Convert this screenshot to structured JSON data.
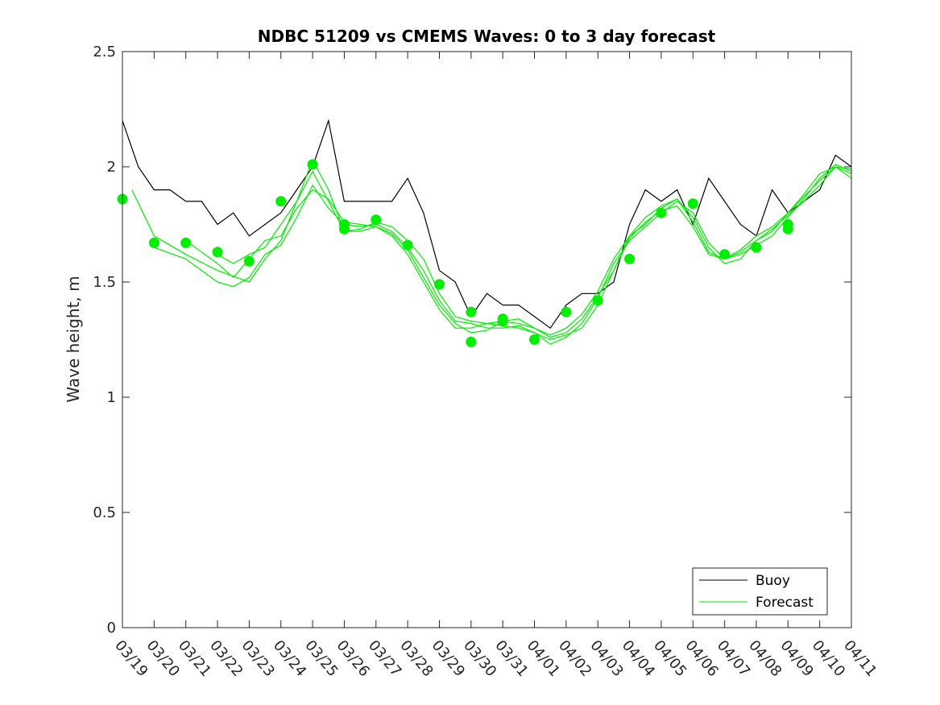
{
  "chart_data": {
    "type": "line",
    "title": "NDBC 51209 vs CMEMS Waves: 0 to 3 day forecast",
    "ylabel": "Wave height, m",
    "xlabel": "",
    "ylim": [
      0,
      2.5
    ],
    "yticks": [
      0,
      0.5,
      1,
      1.5,
      2,
      2.5
    ],
    "ytick_labels": [
      "0",
      "0.5",
      "1",
      "1.5",
      "2",
      "2.5"
    ],
    "xlim": [
      0,
      23
    ],
    "xtick_labels": [
      "03/19",
      "03/20",
      "03/21",
      "03/22",
      "03/23",
      "03/24",
      "03/25",
      "03/26",
      "03/27",
      "03/28",
      "03/29",
      "03/30",
      "03/31",
      "04/01",
      "04/02",
      "04/03",
      "04/04",
      "04/05",
      "04/06",
      "04/07",
      "04/08",
      "04/09",
      "04/10",
      "04/11"
    ],
    "x_unit_note": "x values are days since 03/19 00:00",
    "legend": {
      "location": "bottom-right",
      "entries": [
        "Buoy",
        "Forecast"
      ]
    },
    "colors": {
      "buoy": "#000000",
      "forecast": "#00ee00"
    },
    "series": [
      {
        "name": "Buoy",
        "x": [
          0,
          0.5,
          1,
          1.5,
          2,
          2.5,
          3,
          3.5,
          4,
          4.5,
          5,
          5.5,
          6,
          6.5,
          7,
          7.5,
          8,
          8.5,
          9,
          9.5,
          10,
          10.5,
          11,
          11.5,
          12,
          12.5,
          13,
          13.5,
          14,
          14.5,
          15,
          15.5,
          16,
          16.5,
          17,
          17.5,
          18,
          18.5,
          19,
          19.5,
          20,
          20.5,
          21,
          21.5,
          22,
          22.5,
          23
        ],
        "values": [
          2.2,
          2.0,
          1.9,
          1.9,
          1.85,
          1.85,
          1.75,
          1.8,
          1.7,
          1.75,
          1.8,
          1.9,
          2.0,
          2.2,
          1.85,
          1.85,
          1.85,
          1.85,
          1.95,
          1.8,
          1.55,
          1.5,
          1.35,
          1.45,
          1.4,
          1.4,
          1.35,
          1.3,
          1.4,
          1.45,
          1.45,
          1.5,
          1.75,
          1.9,
          1.85,
          1.9,
          1.75,
          1.95,
          1.85,
          1.75,
          1.7,
          1.9,
          1.8,
          1.85,
          1.9,
          2.05,
          2.0
        ]
      },
      {
        "name": "Forecast",
        "role": "analysis-points",
        "x": [
          0,
          1,
          2,
          3,
          4,
          5,
          6,
          7,
          7,
          8,
          9,
          10,
          11,
          11,
          12,
          12,
          13,
          14,
          15,
          16,
          17,
          18,
          19,
          20,
          21,
          21
        ],
        "values": [
          1.86,
          1.67,
          1.67,
          1.63,
          1.59,
          1.85,
          2.01,
          1.75,
          1.73,
          1.77,
          1.66,
          1.49,
          1.37,
          1.24,
          1.34,
          1.33,
          1.25,
          1.37,
          1.42,
          1.6,
          1.8,
          1.84,
          1.62,
          1.65,
          1.75,
          1.73
        ]
      },
      {
        "name": "Forecast",
        "role": "forecast-run-1",
        "x": [
          0.3,
          1,
          2,
          3,
          4,
          4.5,
          5,
          5.5,
          6,
          6.5,
          7,
          7.5,
          8,
          8.5,
          9,
          9.5,
          10,
          10.5,
          11,
          11.5,
          12,
          12.5,
          13,
          13.5,
          14,
          14.5,
          15,
          15.5,
          16,
          16.5,
          17,
          17.5,
          18,
          18.5,
          19,
          19.5,
          20,
          20.5,
          21,
          21.5,
          22,
          22.5,
          23
        ],
        "values": [
          1.9,
          1.7,
          1.62,
          1.55,
          1.5,
          1.6,
          1.68,
          1.85,
          1.98,
          1.85,
          1.72,
          1.73,
          1.76,
          1.74,
          1.68,
          1.6,
          1.45,
          1.35,
          1.33,
          1.32,
          1.31,
          1.3,
          1.28,
          1.25,
          1.27,
          1.3,
          1.4,
          1.55,
          1.7,
          1.75,
          1.82,
          1.86,
          1.78,
          1.65,
          1.58,
          1.6,
          1.68,
          1.72,
          1.8,
          1.88,
          1.97,
          2.0,
          1.97
        ]
      },
      {
        "name": "Forecast",
        "role": "forecast-run-2",
        "x": [
          1,
          2,
          3,
          3.5,
          4,
          4.5,
          5,
          5.5,
          6,
          6.5,
          7,
          7.5,
          8,
          8.5,
          9,
          9.5,
          10,
          10.5,
          11,
          11.5,
          12,
          12.5,
          13,
          13.5,
          14,
          14.5,
          15,
          15.5,
          16,
          16.5,
          17,
          17.5,
          18,
          18.5,
          19,
          19.5,
          20,
          20.5,
          21,
          21.5,
          22,
          22.5,
          23
        ],
        "values": [
          1.65,
          1.6,
          1.5,
          1.48,
          1.52,
          1.62,
          1.66,
          1.78,
          1.92,
          1.82,
          1.75,
          1.74,
          1.75,
          1.72,
          1.65,
          1.55,
          1.42,
          1.33,
          1.32,
          1.3,
          1.3,
          1.31,
          1.28,
          1.23,
          1.26,
          1.32,
          1.43,
          1.58,
          1.68,
          1.74,
          1.8,
          1.85,
          1.8,
          1.67,
          1.6,
          1.62,
          1.66,
          1.7,
          1.78,
          1.86,
          1.95,
          2.01,
          1.98
        ]
      },
      {
        "name": "Forecast",
        "role": "forecast-run-3",
        "x": [
          2,
          3,
          3.5,
          4,
          4.5,
          5,
          5.5,
          6,
          6.5,
          7,
          7.5,
          8,
          8.5,
          9,
          9.5,
          10,
          10.5,
          11,
          11.5,
          12,
          12.5,
          13,
          13.5,
          14,
          14.5,
          15,
          15.5,
          16,
          16.5,
          17,
          17.5,
          18,
          18.5,
          19,
          19.5,
          20,
          20.5,
          21,
          21.5,
          22,
          22.5,
          23
        ],
        "values": [
          1.68,
          1.58,
          1.52,
          1.6,
          1.68,
          1.7,
          1.82,
          1.9,
          1.86,
          1.76,
          1.75,
          1.74,
          1.7,
          1.62,
          1.5,
          1.38,
          1.3,
          1.3,
          1.32,
          1.33,
          1.32,
          1.3,
          1.27,
          1.3,
          1.36,
          1.46,
          1.6,
          1.7,
          1.78,
          1.83,
          1.86,
          1.76,
          1.63,
          1.6,
          1.64,
          1.7,
          1.74,
          1.8,
          1.87,
          1.94,
          2.0,
          1.99
        ]
      },
      {
        "name": "Forecast",
        "role": "forecast-run-4",
        "x": [
          3,
          3.5,
          4,
          4.5,
          5,
          5.5,
          6,
          6.5,
          7,
          7.5,
          8,
          8.5,
          9,
          9.5,
          10,
          10.5,
          11,
          11.5,
          12,
          12.5,
          13,
          13.5,
          14,
          14.5,
          15,
          15.5,
          16,
          16.5,
          17,
          17.5,
          18,
          18.5,
          19,
          19.5,
          20,
          20.5,
          21,
          21.5,
          22,
          22.5,
          23
        ],
        "values": [
          1.62,
          1.58,
          1.62,
          1.65,
          1.75,
          1.85,
          2.03,
          1.9,
          1.72,
          1.72,
          1.74,
          1.71,
          1.64,
          1.52,
          1.4,
          1.32,
          1.28,
          1.29,
          1.33,
          1.34,
          1.3,
          1.26,
          1.28,
          1.34,
          1.44,
          1.55,
          1.69,
          1.76,
          1.81,
          1.83,
          1.74,
          1.62,
          1.6,
          1.63,
          1.68,
          1.73,
          1.79,
          1.85,
          1.92,
          2.0,
          1.95
        ]
      }
    ]
  }
}
